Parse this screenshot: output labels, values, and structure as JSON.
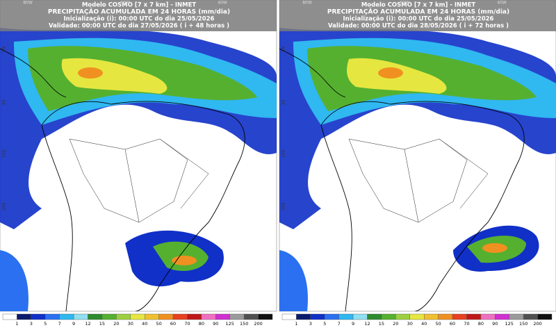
{
  "panels": [
    {
      "title": "Modelo COSMO [7 x 7 km] - INMET",
      "subtitle": "PRECIPITAÇÃO ACUMULADA EM 24 HORAS (mm/dia)",
      "init": "Inicialização (i): 00:00 UTC do dia 25/05/2026",
      "valid": "Validade: 00:00 UTC do dia 27/05/2026 ( i + 48 horas )"
    },
    {
      "title": "Modelo COSMO [7 x 7 km] - INMET",
      "subtitle": "PRECIPITAÇÃO ACUMULADA EM 24 HORAS (mm/dia)",
      "init": "Inicialização (i): 00:00 UTC do dia 25/05/2026",
      "valid": "Validade: 00:00 UTC do dia 28/05/2026 ( i + 72 horas )"
    }
  ],
  "lat_labels": [
    "5N",
    "5S",
    "15S",
    "25S"
  ],
  "lon_labels": [
    "80W",
    "60W",
    "40W"
  ],
  "colorbar": {
    "labels": [
      "1",
      "3",
      "5",
      "7",
      "9",
      "12",
      "15",
      "20",
      "30",
      "40",
      "50",
      "60",
      "70",
      "80",
      "90",
      "125",
      "150",
      "200"
    ],
    "colors": [
      "#ffffff",
      "#0a1a6e",
      "#1030c8",
      "#2a70f0",
      "#30b8f0",
      "#8fe0f0",
      "#2e8b2e",
      "#55b030",
      "#9cd040",
      "#e6e640",
      "#f0c030",
      "#f09020",
      "#e84020",
      "#c01818",
      "#f070c0",
      "#d030d0",
      "#9a9a9a",
      "#505050",
      "#101010"
    ]
  }
}
